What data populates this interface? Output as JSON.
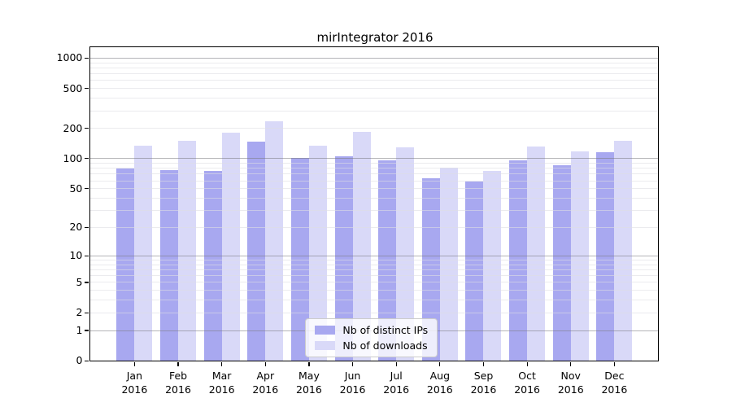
{
  "chart_data": {
    "type": "bar",
    "title": "mirIntegrator 2016",
    "categories": [
      "Jan",
      "Feb",
      "Mar",
      "Apr",
      "May",
      "Jun",
      "Jul",
      "Aug",
      "Sep",
      "Oct",
      "Nov",
      "Dec"
    ],
    "category_sublabel": "2016",
    "series": [
      {
        "name": "Nb of distinct IPs",
        "color": "#a8a8f0",
        "values": [
          80,
          77,
          75,
          149,
          101,
          106,
          97,
          64,
          59,
          96,
          86,
          116
        ]
      },
      {
        "name": "Nb of downloads",
        "color": "#d9d9f8",
        "values": [
          135,
          150,
          180,
          238,
          135,
          185,
          130,
          81,
          75,
          133,
          119,
          151
        ]
      }
    ],
    "yscale": "log1p",
    "ylim": [
      0,
      1274
    ],
    "yticks_labeled": [
      0,
      1,
      2,
      5,
      10,
      20,
      50,
      100,
      200,
      500,
      1000
    ],
    "yticks_major": [
      1,
      10,
      100,
      1000
    ],
    "yticks_minor": [
      2,
      3,
      4,
      5,
      6,
      7,
      8,
      9,
      20,
      30,
      40,
      50,
      60,
      70,
      80,
      90,
      200,
      300,
      400,
      500,
      600,
      700,
      800,
      900
    ],
    "grid": "horizontal",
    "legend_position": "bottom-center",
    "colors": {
      "axis": "#000000",
      "text": "#000000",
      "major_grid": "#b2b2b2",
      "minor_grid": "#ececec",
      "legend_border": "#cccccc",
      "background": "#ffffff"
    }
  }
}
